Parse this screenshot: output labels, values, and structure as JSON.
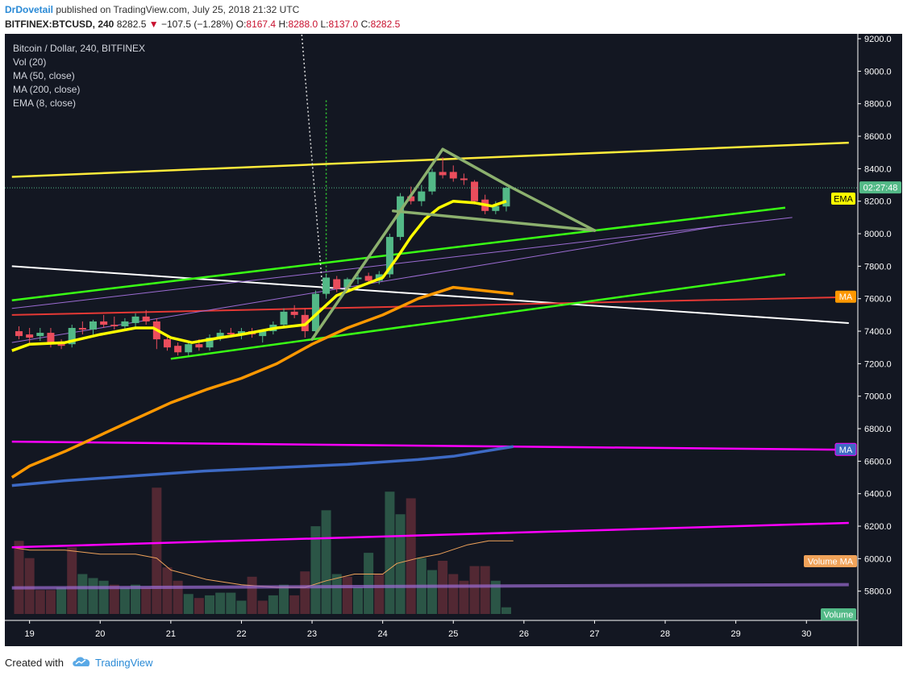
{
  "header": {
    "author": "DrDovetail",
    "published_text": "published on TradingView.com, July 25, 2018 21:32 UTC",
    "symbol": "BITFINEX:BTCUSD, 240",
    "last": "8282.5",
    "change": "−107.5 (−1.28%)",
    "o_label": "O:",
    "o_val": "8167.4",
    "h_label": "H:",
    "h_val": "8288.0",
    "l_label": "L:",
    "l_val": "8137.0",
    "c_label": "C:",
    "c_val": "8282.5"
  },
  "legend": {
    "title": "Bitcoin / Dollar, 240, BITFINEX",
    "vol": "Vol (20)",
    "ma50": "MA (50, close)",
    "ma200": "MA (200, close)",
    "ema8": "EMA (8, close)"
  },
  "footer": {
    "created_with": "Created with",
    "brand": "TradingView"
  },
  "colors": {
    "bg": "#131722",
    "up": "#53b987",
    "down": "#eb4d5c",
    "ema": "#ffff00",
    "ma50": "#ff9800",
    "ma200": "#3d6ac5",
    "yellow_line": "#ffeb3b",
    "green_line": "#39ff14",
    "magenta_line": "#ff00ff",
    "white_line": "#ffffff",
    "red_line": "#e53935",
    "purple_line": "#9c6cd3",
    "pattern": "#8cb06e"
  },
  "chart_data": {
    "type": "candlestick",
    "title": "Bitcoin / Dollar, 240, BITFINEX",
    "x_tick_labels": [
      "19",
      "20",
      "21",
      "22",
      "23",
      "24",
      "25",
      "26",
      "27",
      "28",
      "29",
      "30"
    ],
    "y_tick_labels": [
      "9200.0",
      "9000.0",
      "8800.0",
      "8600.0",
      "8400.0",
      "8200.0",
      "8000.0",
      "7800.0",
      "7600.0",
      "7400.0",
      "7200.0",
      "7000.0",
      "6800.0",
      "6600.0",
      "6400.0",
      "6200.0",
      "6000.0",
      "5800.0"
    ],
    "ylim": [
      5620,
      9230
    ],
    "current_time_label": "02:27:48",
    "current_price": 8282.5,
    "badges": {
      "ema": "EMA",
      "ma": "MA",
      "ma2": "MA",
      "volume_ma": "Volume MA",
      "volume": "Volume"
    },
    "candles": [
      {
        "day": 18.85,
        "o": 7400,
        "h": 7430,
        "l": 7350,
        "c": 7370
      },
      {
        "day": 19.0,
        "o": 7380,
        "h": 7420,
        "l": 7320,
        "c": 7360
      },
      {
        "day": 19.15,
        "o": 7370,
        "h": 7420,
        "l": 7340,
        "c": 7390
      },
      {
        "day": 19.3,
        "o": 7390,
        "h": 7420,
        "l": 7300,
        "c": 7320
      },
      {
        "day": 19.45,
        "o": 7320,
        "h": 7350,
        "l": 7290,
        "c": 7310
      },
      {
        "day": 19.6,
        "o": 7320,
        "h": 7440,
        "l": 7300,
        "c": 7420
      },
      {
        "day": 19.75,
        "o": 7420,
        "h": 7460,
        "l": 7380,
        "c": 7410
      },
      {
        "day": 19.9,
        "o": 7410,
        "h": 7470,
        "l": 7380,
        "c": 7460
      },
      {
        "day": 20.05,
        "o": 7460,
        "h": 7500,
        "l": 7420,
        "c": 7440
      },
      {
        "day": 20.2,
        "o": 7440,
        "h": 7490,
        "l": 7410,
        "c": 7430
      },
      {
        "day": 20.35,
        "o": 7430,
        "h": 7480,
        "l": 7400,
        "c": 7460
      },
      {
        "day": 20.5,
        "o": 7450,
        "h": 7510,
        "l": 7420,
        "c": 7490
      },
      {
        "day": 20.65,
        "o": 7490,
        "h": 7530,
        "l": 7440,
        "c": 7460
      },
      {
        "day": 20.8,
        "o": 7460,
        "h": 7480,
        "l": 7290,
        "c": 7350
      },
      {
        "day": 20.95,
        "o": 7350,
        "h": 7380,
        "l": 7280,
        "c": 7300
      },
      {
        "day": 21.1,
        "o": 7310,
        "h": 7330,
        "l": 7250,
        "c": 7270
      },
      {
        "day": 21.25,
        "o": 7270,
        "h": 7330,
        "l": 7250,
        "c": 7320
      },
      {
        "day": 21.4,
        "o": 7320,
        "h": 7350,
        "l": 7280,
        "c": 7300
      },
      {
        "day": 21.55,
        "o": 7300,
        "h": 7380,
        "l": 7280,
        "c": 7360
      },
      {
        "day": 21.7,
        "o": 7360,
        "h": 7410,
        "l": 7340,
        "c": 7390
      },
      {
        "day": 21.85,
        "o": 7390,
        "h": 7420,
        "l": 7360,
        "c": 7380
      },
      {
        "day": 22.0,
        "o": 7380,
        "h": 7420,
        "l": 7350,
        "c": 7400
      },
      {
        "day": 22.15,
        "o": 7400,
        "h": 7420,
        "l": 7360,
        "c": 7380
      },
      {
        "day": 22.3,
        "o": 7370,
        "h": 7410,
        "l": 7330,
        "c": 7400
      },
      {
        "day": 22.45,
        "o": 7400,
        "h": 7460,
        "l": 7380,
        "c": 7440
      },
      {
        "day": 22.6,
        "o": 7440,
        "h": 7540,
        "l": 7420,
        "c": 7520
      },
      {
        "day": 22.75,
        "o": 7520,
        "h": 7560,
        "l": 7480,
        "c": 7500
      },
      {
        "day": 22.9,
        "o": 7500,
        "h": 7540,
        "l": 7360,
        "c": 7400
      },
      {
        "day": 23.05,
        "o": 7400,
        "h": 7650,
        "l": 7380,
        "c": 7630
      },
      {
        "day": 23.2,
        "o": 7630,
        "h": 7750,
        "l": 7600,
        "c": 7730
      },
      {
        "day": 23.35,
        "o": 7720,
        "h": 7740,
        "l": 7640,
        "c": 7660
      },
      {
        "day": 23.5,
        "o": 7670,
        "h": 7730,
        "l": 7650,
        "c": 7720
      },
      {
        "day": 23.65,
        "o": 7720,
        "h": 7760,
        "l": 7690,
        "c": 7730
      },
      {
        "day": 23.8,
        "o": 7740,
        "h": 7760,
        "l": 7700,
        "c": 7710
      },
      {
        "day": 23.95,
        "o": 7710,
        "h": 7770,
        "l": 7690,
        "c": 7750
      },
      {
        "day": 24.1,
        "o": 7750,
        "h": 8000,
        "l": 7730,
        "c": 7980
      },
      {
        "day": 24.25,
        "o": 7980,
        "h": 8250,
        "l": 7960,
        "c": 8230
      },
      {
        "day": 24.4,
        "o": 8230,
        "h": 8290,
        "l": 8180,
        "c": 8200
      },
      {
        "day": 24.55,
        "o": 8200,
        "h": 8300,
        "l": 8170,
        "c": 8260
      },
      {
        "day": 24.7,
        "o": 8260,
        "h": 8400,
        "l": 8240,
        "c": 8380
      },
      {
        "day": 24.85,
        "o": 8380,
        "h": 8470,
        "l": 8340,
        "c": 8360
      },
      {
        "day": 25.0,
        "o": 8380,
        "h": 8420,
        "l": 8320,
        "c": 8340
      },
      {
        "day": 25.15,
        "o": 8340,
        "h": 8370,
        "l": 8300,
        "c": 8330
      },
      {
        "day": 25.3,
        "o": 8320,
        "h": 8330,
        "l": 8180,
        "c": 8200
      },
      {
        "day": 25.45,
        "o": 8210,
        "h": 8240,
        "l": 8120,
        "c": 8140
      },
      {
        "day": 25.6,
        "o": 8140,
        "h": 8200,
        "l": 8120,
        "c": 8170
      },
      {
        "day": 25.75,
        "o": 8167.4,
        "h": 8288,
        "l": 8137,
        "c": 8282.5
      }
    ],
    "volume": [
      {
        "day": 18.85,
        "v": 0.55,
        "up": false
      },
      {
        "day": 19.0,
        "v": 0.42,
        "up": false
      },
      {
        "day": 19.15,
        "v": 0.18,
        "up": false
      },
      {
        "day": 19.3,
        "v": 0.18,
        "up": false
      },
      {
        "day": 19.45,
        "v": 0.2,
        "up": true
      },
      {
        "day": 19.6,
        "v": 0.5,
        "up": false
      },
      {
        "day": 19.75,
        "v": 0.3,
        "up": true
      },
      {
        "day": 19.9,
        "v": 0.27,
        "up": true
      },
      {
        "day": 20.05,
        "v": 0.25,
        "up": true
      },
      {
        "day": 20.2,
        "v": 0.22,
        "up": false
      },
      {
        "day": 20.35,
        "v": 0.2,
        "up": true
      },
      {
        "day": 20.5,
        "v": 0.22,
        "up": true
      },
      {
        "day": 20.65,
        "v": 0.2,
        "up": false
      },
      {
        "day": 20.8,
        "v": 0.95,
        "up": false
      },
      {
        "day": 20.95,
        "v": 0.35,
        "up": false
      },
      {
        "day": 21.1,
        "v": 0.25,
        "up": false
      },
      {
        "day": 21.25,
        "v": 0.15,
        "up": true
      },
      {
        "day": 21.4,
        "v": 0.12,
        "up": false
      },
      {
        "day": 21.55,
        "v": 0.14,
        "up": true
      },
      {
        "day": 21.7,
        "v": 0.16,
        "up": true
      },
      {
        "day": 21.85,
        "v": 0.16,
        "up": true
      },
      {
        "day": 22.0,
        "v": 0.1,
        "up": true
      },
      {
        "day": 22.15,
        "v": 0.28,
        "up": false
      },
      {
        "day": 22.3,
        "v": 0.1,
        "up": false
      },
      {
        "day": 22.45,
        "v": 0.14,
        "up": true
      },
      {
        "day": 22.6,
        "v": 0.22,
        "up": true
      },
      {
        "day": 22.75,
        "v": 0.14,
        "up": false
      },
      {
        "day": 22.9,
        "v": 0.32,
        "up": false
      },
      {
        "day": 23.05,
        "v": 0.66,
        "up": true
      },
      {
        "day": 23.2,
        "v": 0.78,
        "up": true
      },
      {
        "day": 23.35,
        "v": 0.3,
        "up": true
      },
      {
        "day": 23.5,
        "v": 0.28,
        "up": false
      },
      {
        "day": 23.65,
        "v": 0.2,
        "up": true
      },
      {
        "day": 23.8,
        "v": 0.46,
        "up": true
      },
      {
        "day": 23.95,
        "v": 0.3,
        "up": false
      },
      {
        "day": 24.1,
        "v": 0.92,
        "up": true
      },
      {
        "day": 24.25,
        "v": 0.75,
        "up": true
      },
      {
        "day": 24.4,
        "v": 0.87,
        "up": false
      },
      {
        "day": 24.55,
        "v": 0.42,
        "up": true
      },
      {
        "day": 24.7,
        "v": 0.33,
        "up": true
      },
      {
        "day": 24.85,
        "v": 0.4,
        "up": false
      },
      {
        "day": 25.0,
        "v": 0.3,
        "up": false
      },
      {
        "day": 25.15,
        "v": 0.25,
        "up": false
      },
      {
        "day": 25.3,
        "v": 0.36,
        "up": false
      },
      {
        "day": 25.45,
        "v": 0.36,
        "up": false
      },
      {
        "day": 25.6,
        "v": 0.25,
        "up": true
      },
      {
        "day": 25.75,
        "v": 0.05,
        "up": true
      }
    ],
    "ema8": [
      [
        18.75,
        7280
      ],
      [
        19.0,
        7320
      ],
      [
        19.5,
        7330
      ],
      [
        20.0,
        7380
      ],
      [
        20.5,
        7420
      ],
      [
        20.75,
        7420
      ],
      [
        21.0,
        7360
      ],
      [
        21.3,
        7330
      ],
      [
        21.7,
        7360
      ],
      [
        22.0,
        7380
      ],
      [
        22.5,
        7420
      ],
      [
        22.9,
        7440
      ],
      [
        23.1,
        7520
      ],
      [
        23.35,
        7620
      ],
      [
        23.7,
        7680
      ],
      [
        24.0,
        7730
      ],
      [
        24.2,
        7850
      ],
      [
        24.4,
        7980
      ],
      [
        24.6,
        8090
      ],
      [
        24.8,
        8160
      ],
      [
        25.0,
        8200
      ],
      [
        25.3,
        8190
      ],
      [
        25.55,
        8170
      ],
      [
        25.75,
        8200
      ]
    ],
    "ma50": [
      [
        18.75,
        6500
      ],
      [
        19.0,
        6570
      ],
      [
        19.5,
        6660
      ],
      [
        20.0,
        6760
      ],
      [
        20.5,
        6860
      ],
      [
        21.0,
        6960
      ],
      [
        21.5,
        7040
      ],
      [
        22.0,
        7110
      ],
      [
        22.5,
        7200
      ],
      [
        23.0,
        7320
      ],
      [
        23.5,
        7420
      ],
      [
        24.0,
        7500
      ],
      [
        24.5,
        7600
      ],
      [
        25.0,
        7670
      ],
      [
        25.85,
        7630
      ]
    ],
    "ma200": [
      [
        18.75,
        6450
      ],
      [
        19.5,
        6480
      ],
      [
        20.5,
        6510
      ],
      [
        21.5,
        6540
      ],
      [
        22.5,
        6560
      ],
      [
        23.5,
        6580
      ],
      [
        24.5,
        6610
      ],
      [
        25.0,
        6630
      ],
      [
        25.85,
        6690
      ]
    ],
    "volume_ma": [
      [
        18.75,
        0.5
      ],
      [
        19.0,
        0.48
      ],
      [
        19.5,
        0.48
      ],
      [
        20.0,
        0.45
      ],
      [
        20.5,
        0.45
      ],
      [
        20.8,
        0.42
      ],
      [
        21.0,
        0.33
      ],
      [
        21.5,
        0.26
      ],
      [
        22.0,
        0.22
      ],
      [
        22.5,
        0.2
      ],
      [
        22.9,
        0.2
      ],
      [
        23.2,
        0.25
      ],
      [
        23.6,
        0.3
      ],
      [
        24.0,
        0.3
      ],
      [
        24.2,
        0.38
      ],
      [
        24.5,
        0.42
      ],
      [
        24.8,
        0.45
      ],
      [
        25.2,
        0.52
      ],
      [
        25.5,
        0.55
      ],
      [
        25.85,
        0.55
      ]
    ],
    "trendlines": [
      {
        "name": "yellow-resistance",
        "x1": 18.75,
        "y1": 8350,
        "x2": 30.6,
        "y2": 8560,
        "color": "yellow_line"
      },
      {
        "name": "white-trendline",
        "x1": 18.75,
        "y1": 7800,
        "x2": 30.6,
        "y2": 7450,
        "color": "white_line"
      },
      {
        "name": "red-trendline",
        "x1": 18.75,
        "y1": 7500,
        "x2": 30.6,
        "y2": 7610,
        "color": "red_line"
      },
      {
        "name": "green-channel-upper",
        "x1": 18.75,
        "y1": 7590,
        "x2": 29.7,
        "y2": 8160,
        "color": "green_line"
      },
      {
        "name": "green-channel-lower",
        "x1": 21.0,
        "y1": 7230,
        "x2": 29.7,
        "y2": 7750,
        "color": "green_line"
      },
      {
        "name": "magenta-upper",
        "x1": 18.75,
        "y1": 6720,
        "x2": 30.6,
        "y2": 6670,
        "color": "magenta_line"
      },
      {
        "name": "magenta-lower",
        "x1": 18.75,
        "y1": 6070,
        "x2": 30.6,
        "y2": 6220,
        "color": "magenta_line"
      },
      {
        "name": "purple-thin-1",
        "x1": 18.75,
        "y1": 7540,
        "x2": 29.8,
        "y2": 8100,
        "color": "purple_line"
      },
      {
        "name": "purple-thin-2",
        "x1": 18.75,
        "y1": 7330,
        "x2": 28.8,
        "y2": 8050,
        "color": "purple_line"
      },
      {
        "name": "lavender-horizontal",
        "x1": 18.75,
        "y1": 5820,
        "x2": 30.6,
        "y2": 5840,
        "color": "purple_line"
      }
    ],
    "pattern_points": [
      [
        23.0,
        7350
      ],
      [
        24.85,
        8520
      ],
      [
        25.8,
        8290
      ],
      [
        27.0,
        8020
      ],
      [
        24.15,
        8140
      ]
    ],
    "pattern_lines": [
      [
        0,
        1
      ],
      [
        1,
        2
      ],
      [
        2,
        3
      ],
      [
        3,
        4
      ]
    ],
    "dotted_white": [
      [
        22.85,
        9250
      ],
      [
        23.15,
        7650
      ]
    ],
    "dotted_green": [
      [
        23.2,
        8820
      ],
      [
        23.2,
        7620
      ]
    ],
    "current_price_line": 8282.5
  }
}
